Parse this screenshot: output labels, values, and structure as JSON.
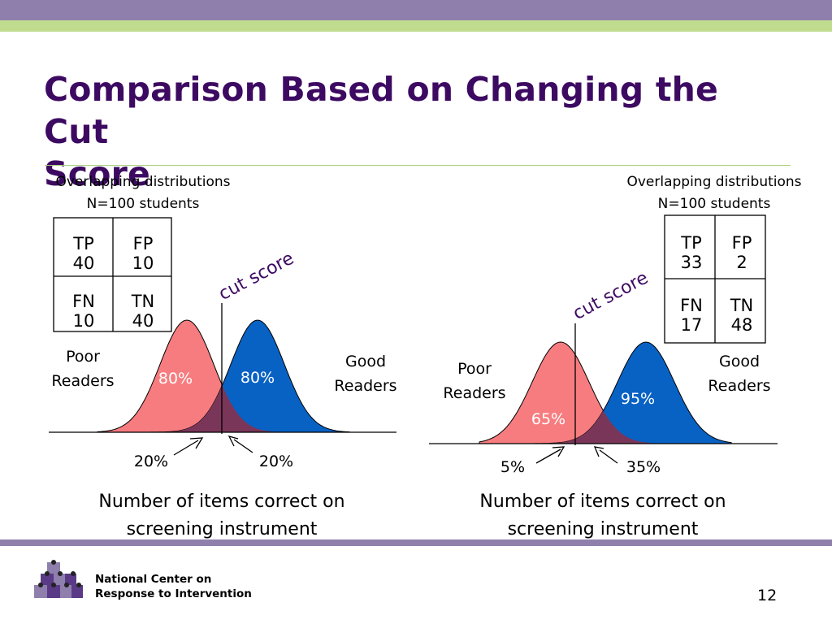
{
  "slide": {
    "title_line1": "Comparison Based on Changing the Cut",
    "title_line2": "Score",
    "page_number": "12",
    "organization_line1": "National Center on",
    "organization_line2": "Response to Intervention"
  },
  "colors": {
    "top_band": "#8e7fad",
    "green_band": "#c0dc8f",
    "title": "#3d0a62",
    "poor_readers_curve": "#f77c7f",
    "good_readers_curve": "#0862c4",
    "overlap": "#7a3658"
  },
  "panels": [
    {
      "caption_line1": "Overlapping distributions",
      "caption_line2": "N=100 students",
      "table": {
        "tp_label": "TP",
        "tp_value": "40",
        "fp_label": "FP",
        "fp_value": "10",
        "fn_label": "FN",
        "fn_value": "10",
        "tn_label": "TN",
        "tn_value": "40"
      },
      "cut_label": "cut score",
      "poor_line1": "Poor",
      "poor_line2": "Readers",
      "good_line1": "Good",
      "good_line2": "Readers",
      "poor_pct": "80%",
      "good_pct": "80%",
      "poor_tail_pct": "20%",
      "good_tail_pct": "20%",
      "axis_line1": "Number of items correct on",
      "axis_line2": "screening instrument"
    },
    {
      "caption_line1": "Overlapping distributions",
      "caption_line2": "N=100 students",
      "table": {
        "tp_label": "TP",
        "tp_value": "33",
        "fp_label": "FP",
        "fp_value": "2",
        "fn_label": "FN",
        "fn_value": "17",
        "tn_label": "TN",
        "tn_value": "48"
      },
      "cut_label": "cut score",
      "poor_line1": "Poor",
      "poor_line2": "Readers",
      "good_line1": "Good",
      "good_line2": "Readers",
      "poor_pct": "65%",
      "good_pct": "95%",
      "poor_tail_pct": "5%",
      "good_tail_pct": "35%",
      "axis_line1": "Number of items correct on",
      "axis_line2": "screening instrument"
    }
  ]
}
